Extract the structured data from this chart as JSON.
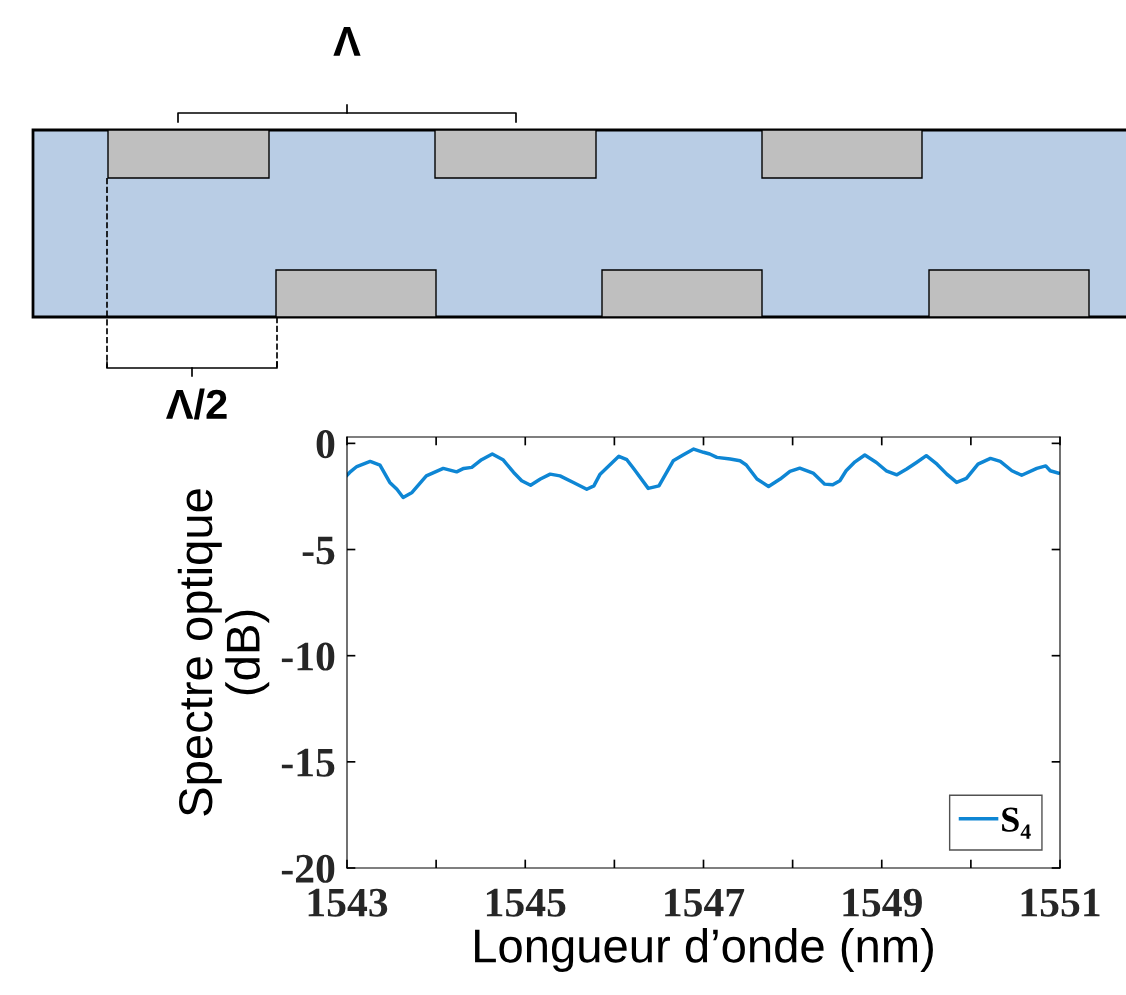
{
  "chart_data": {
    "type": "line",
    "xlabel": "Longueur d’onde (nm)",
    "ylabel": "Spectre optique\n(dB)",
    "annotations": [
      "Λ",
      "Λ/2"
    ],
    "xlim": [
      1543,
      1551
    ],
    "ylim": [
      -20,
      0.3
    ],
    "xticks": [
      1543,
      {
        "value": 1544,
        "label": null
      },
      1545,
      {
        "value": 1546,
        "label": null
      },
      1547,
      {
        "value": 1548,
        "label": null
      },
      1549,
      {
        "value": 1550,
        "label": null
      },
      1551
    ],
    "yticks": [
      -20,
      -15,
      -10,
      -5,
      0
    ],
    "grid": false,
    "legend": "bottom right",
    "marker": "none",
    "line_style": "solid",
    "series": [
      {
        "name": "S₄",
        "color": "#0e86d4",
        "x": [
          1543.0,
          1543.03,
          1543.11,
          1543.26,
          1543.37,
          1543.48,
          1543.56,
          1543.63,
          1543.73,
          1543.89,
          1544.08,
          1544.23,
          1544.31,
          1544.4,
          1544.51,
          1544.63,
          1544.75,
          1544.87,
          1544.96,
          1545.06,
          1545.17,
          1545.28,
          1545.39,
          1545.54,
          1545.69,
          1545.77,
          1545.84,
          1546.05,
          1546.14,
          1546.22,
          1546.38,
          1546.5,
          1546.66,
          1546.77,
          1546.89,
          1547.0,
          1547.07,
          1547.15,
          1547.3,
          1547.41,
          1547.48,
          1547.6,
          1547.73,
          1547.86,
          1547.97,
          1548.08,
          1548.23,
          1548.36,
          1548.45,
          1548.53,
          1548.6,
          1548.7,
          1548.81,
          1548.94,
          1549.05,
          1549.17,
          1549.28,
          1549.39,
          1549.5,
          1549.62,
          1549.73,
          1549.84,
          1549.95,
          1550.08,
          1550.22,
          1550.33,
          1550.46,
          1550.57,
          1550.74,
          1550.84,
          1550.89,
          1550.98
        ],
        "values": [
          -1.5,
          -1.37,
          -1.09,
          -0.85,
          -1.02,
          -1.84,
          -2.16,
          -2.55,
          -2.31,
          -1.53,
          -1.18,
          -1.34,
          -1.18,
          -1.13,
          -0.77,
          -0.5,
          -0.77,
          -1.37,
          -1.76,
          -1.97,
          -1.68,
          -1.45,
          -1.53,
          -1.84,
          -2.16,
          -2.0,
          -1.45,
          -0.61,
          -0.77,
          -1.21,
          -2.12,
          -2.0,
          -0.82,
          -0.55,
          -0.27,
          -0.42,
          -0.5,
          -0.66,
          -0.74,
          -0.82,
          -1.02,
          -1.68,
          -2.03,
          -1.68,
          -1.32,
          -1.17,
          -1.4,
          -1.92,
          -1.95,
          -1.76,
          -1.29,
          -0.87,
          -0.55,
          -0.9,
          -1.29,
          -1.48,
          -1.21,
          -0.9,
          -0.58,
          -0.98,
          -1.45,
          -1.84,
          -1.65,
          -0.98,
          -0.71,
          -0.85,
          -1.29,
          -1.5,
          -1.18,
          -1.06,
          -1.29,
          -1.4
        ]
      }
    ]
  }
}
